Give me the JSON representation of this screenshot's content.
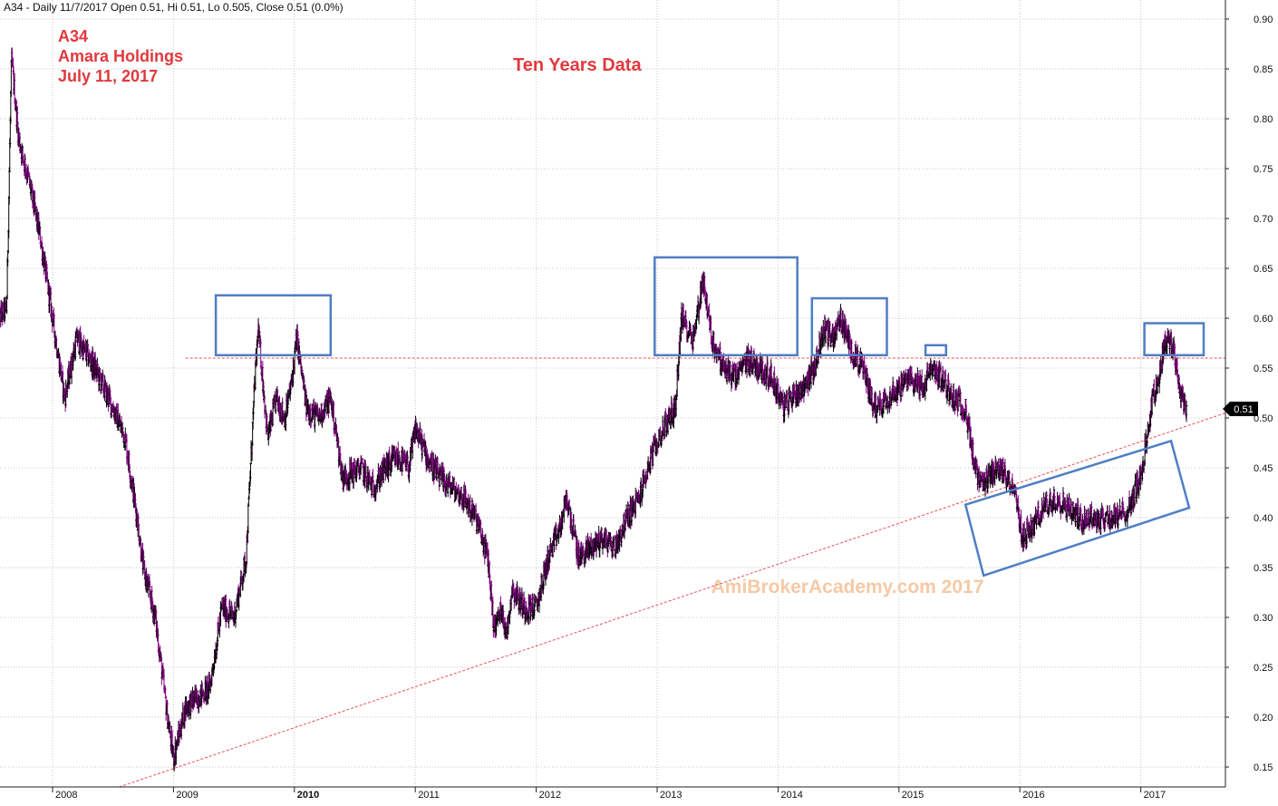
{
  "header": {
    "text": "A34 - Daily 11/7/2017 Open 0.51, Hi 0.51, Lo 0.505, Close 0.51 (0.0%)"
  },
  "annotation": {
    "ticker": "A34",
    "company": "Amara Holdings",
    "date": "July 11, 2017",
    "title": "Ten Years Data",
    "watermark": "AmiBrokerAcademy.com  2017"
  },
  "price_tag": "0.51",
  "colors": {
    "annotation_text": "#e0393e",
    "candle_up": "#000000",
    "candle_down": "#800080",
    "grid": "#c8c8c8",
    "box": "#4f7ec4",
    "trendline": "#e85050",
    "watermark": "#f5c9a5"
  },
  "chart_data": {
    "type": "ohlc",
    "title": "",
    "xlabel": "",
    "ylabel": "",
    "ylim": [
      0.13,
      0.92
    ],
    "xlim": [
      2007.55,
      2017.6
    ],
    "y_ticks": [
      "0.15",
      "0.20",
      "0.25",
      "0.30",
      "0.35",
      "0.40",
      "0.45",
      "0.50",
      "0.55",
      "0.60",
      "0.65",
      "0.70",
      "0.75",
      "0.80",
      "0.85",
      "0.90"
    ],
    "x_ticks": [
      {
        "x": 2008,
        "label": "2008",
        "bold": false
      },
      {
        "x": 2009,
        "label": "2009",
        "bold": false
      },
      {
        "x": 2010,
        "label": "2010",
        "bold": true
      },
      {
        "x": 2011,
        "label": "2011",
        "bold": false
      },
      {
        "x": 2012,
        "label": "2012",
        "bold": false
      },
      {
        "x": 2013,
        "label": "2013",
        "bold": false
      },
      {
        "x": 2014,
        "label": "2014",
        "bold": false
      },
      {
        "x": 2015,
        "label": "2015",
        "bold": false
      },
      {
        "x": 2016,
        "label": "2016",
        "bold": false
      },
      {
        "x": 2017,
        "label": "2017",
        "bold": false
      }
    ],
    "close_path": [
      [
        2007.55,
        0.6
      ],
      [
        2007.62,
        0.61
      ],
      [
        2007.66,
        0.86
      ],
      [
        2007.72,
        0.78
      ],
      [
        2007.8,
        0.74
      ],
      [
        2007.9,
        0.68
      ],
      [
        2008.0,
        0.6
      ],
      [
        2008.1,
        0.52
      ],
      [
        2008.2,
        0.58
      ],
      [
        2008.35,
        0.55
      ],
      [
        2008.5,
        0.51
      ],
      [
        2008.6,
        0.48
      ],
      [
        2008.7,
        0.4
      ],
      [
        2008.75,
        0.35
      ],
      [
        2008.85,
        0.3
      ],
      [
        2008.95,
        0.2
      ],
      [
        2009.0,
        0.16
      ],
      [
        2009.1,
        0.21
      ],
      [
        2009.2,
        0.22
      ],
      [
        2009.3,
        0.23
      ],
      [
        2009.4,
        0.31
      ],
      [
        2009.5,
        0.3
      ],
      [
        2009.6,
        0.36
      ],
      [
        2009.67,
        0.53
      ],
      [
        2009.7,
        0.59
      ],
      [
        2009.78,
        0.48
      ],
      [
        2009.85,
        0.52
      ],
      [
        2009.92,
        0.5
      ],
      [
        2009.97,
        0.53
      ],
      [
        2010.02,
        0.58
      ],
      [
        2010.1,
        0.51
      ],
      [
        2010.2,
        0.5
      ],
      [
        2010.3,
        0.52
      ],
      [
        2010.4,
        0.44
      ],
      [
        2010.55,
        0.45
      ],
      [
        2010.65,
        0.43
      ],
      [
        2010.75,
        0.45
      ],
      [
        2010.85,
        0.46
      ],
      [
        2010.95,
        0.45
      ],
      [
        2011.0,
        0.49
      ],
      [
        2011.1,
        0.46
      ],
      [
        2011.2,
        0.44
      ],
      [
        2011.3,
        0.43
      ],
      [
        2011.4,
        0.42
      ],
      [
        2011.5,
        0.4
      ],
      [
        2011.6,
        0.36
      ],
      [
        2011.65,
        0.29
      ],
      [
        2011.72,
        0.31
      ],
      [
        2011.75,
        0.28
      ],
      [
        2011.8,
        0.33
      ],
      [
        2011.9,
        0.31
      ],
      [
        2012.0,
        0.31
      ],
      [
        2012.1,
        0.36
      ],
      [
        2012.2,
        0.39
      ],
      [
        2012.25,
        0.42
      ],
      [
        2012.35,
        0.36
      ],
      [
        2012.45,
        0.37
      ],
      [
        2012.55,
        0.38
      ],
      [
        2012.65,
        0.37
      ],
      [
        2012.75,
        0.4
      ],
      [
        2012.85,
        0.42
      ],
      [
        2012.95,
        0.46
      ],
      [
        2013.05,
        0.49
      ],
      [
        2013.15,
        0.51
      ],
      [
        2013.2,
        0.6
      ],
      [
        2013.3,
        0.58
      ],
      [
        2013.38,
        0.64
      ],
      [
        2013.45,
        0.58
      ],
      [
        2013.55,
        0.55
      ],
      [
        2013.65,
        0.54
      ],
      [
        2013.75,
        0.56
      ],
      [
        2013.85,
        0.55
      ],
      [
        2013.95,
        0.54
      ],
      [
        2014.05,
        0.51
      ],
      [
        2014.1,
        0.52
      ],
      [
        2014.2,
        0.53
      ],
      [
        2014.3,
        0.55
      ],
      [
        2014.38,
        0.59
      ],
      [
        2014.45,
        0.58
      ],
      [
        2014.52,
        0.6
      ],
      [
        2014.6,
        0.57
      ],
      [
        2014.7,
        0.55
      ],
      [
        2014.8,
        0.51
      ],
      [
        2014.9,
        0.52
      ],
      [
        2015.0,
        0.53
      ],
      [
        2015.1,
        0.54
      ],
      [
        2015.2,
        0.53
      ],
      [
        2015.27,
        0.55
      ],
      [
        2015.35,
        0.54
      ],
      [
        2015.45,
        0.52
      ],
      [
        2015.55,
        0.51
      ],
      [
        2015.6,
        0.47
      ],
      [
        2015.65,
        0.44
      ],
      [
        2015.7,
        0.43
      ],
      [
        2015.8,
        0.45
      ],
      [
        2015.9,
        0.44
      ],
      [
        2015.95,
        0.43
      ],
      [
        2016.02,
        0.38
      ],
      [
        2016.1,
        0.39
      ],
      [
        2016.2,
        0.41
      ],
      [
        2016.3,
        0.42
      ],
      [
        2016.4,
        0.41
      ],
      [
        2016.5,
        0.4
      ],
      [
        2016.6,
        0.4
      ],
      [
        2016.7,
        0.4
      ],
      [
        2016.8,
        0.4
      ],
      [
        2016.9,
        0.41
      ],
      [
        2017.0,
        0.44
      ],
      [
        2017.05,
        0.48
      ],
      [
        2017.1,
        0.52
      ],
      [
        2017.15,
        0.54
      ],
      [
        2017.2,
        0.58
      ],
      [
        2017.27,
        0.57
      ],
      [
        2017.32,
        0.53
      ],
      [
        2017.38,
        0.51
      ]
    ]
  }
}
